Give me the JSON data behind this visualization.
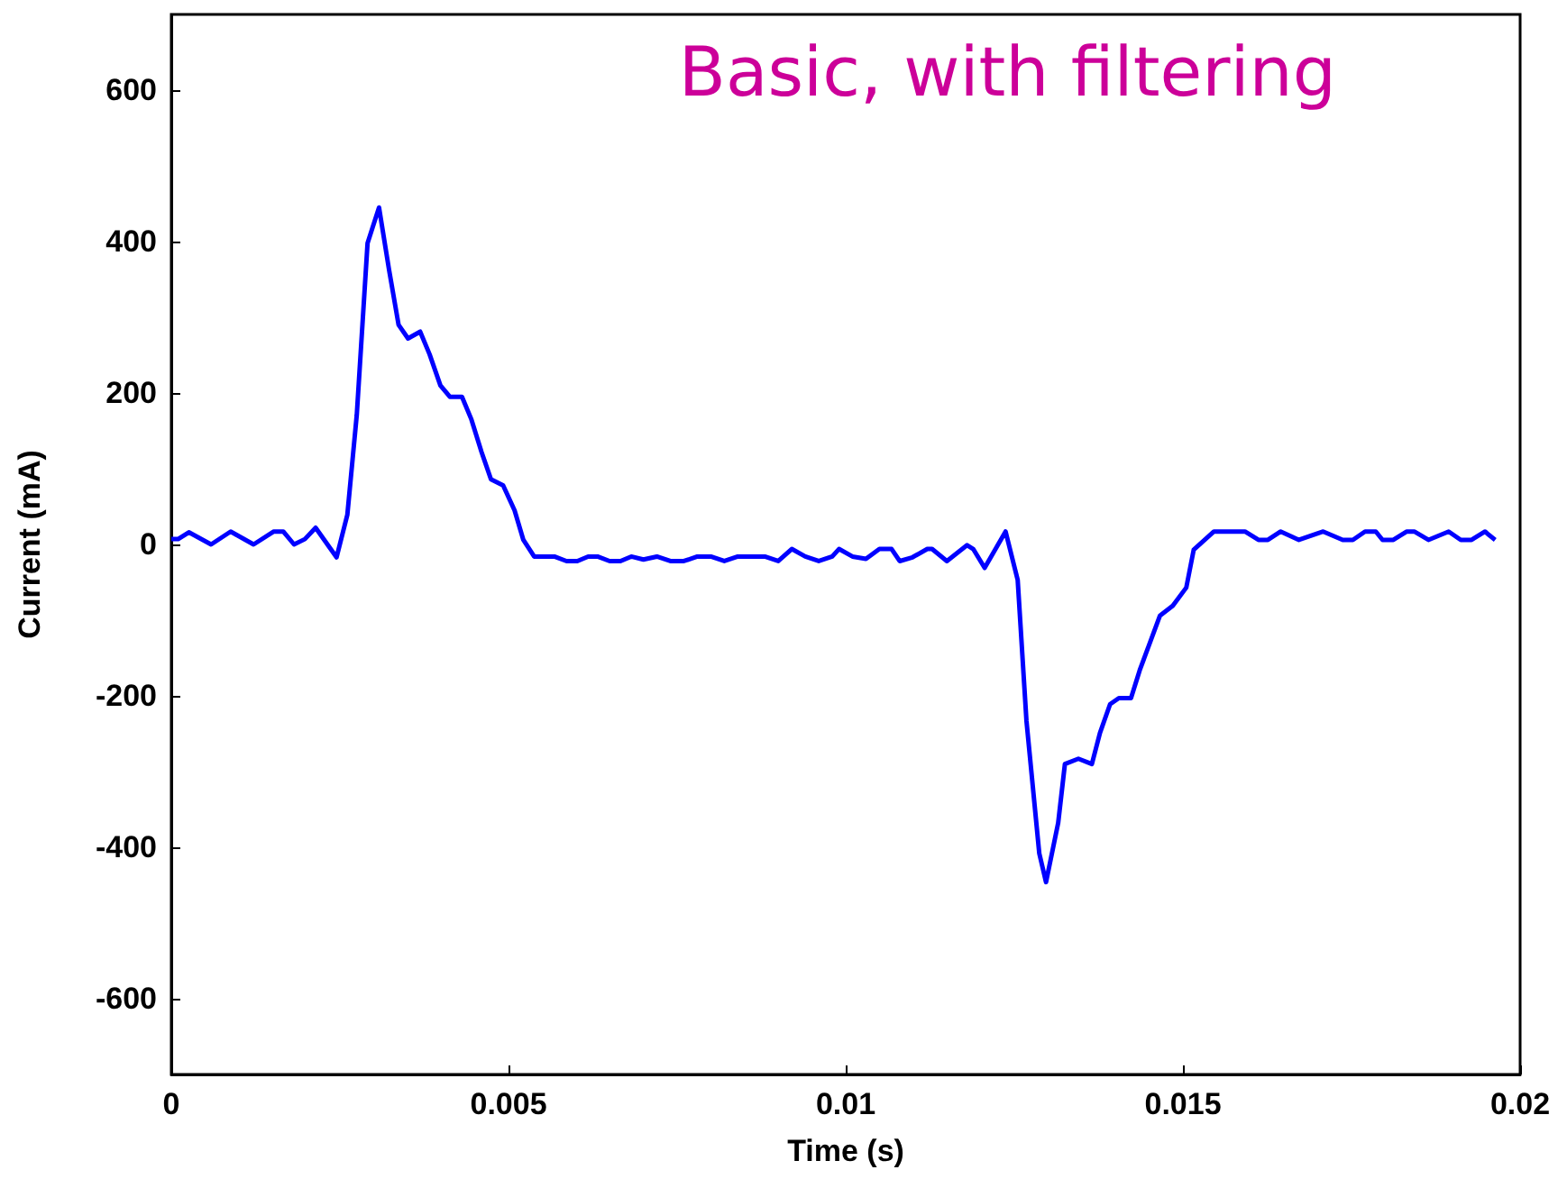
{
  "chart_data": {
    "type": "line",
    "title": "Basic, with filtering",
    "xlabel": "Time (s)",
    "ylabel": "Current (mA)",
    "x": [
      0,
      0.0001,
      0.00026,
      0.00059,
      0.00088,
      0.00122,
      0.00152,
      0.00166,
      0.00182,
      0.00198,
      0.00214,
      0.00245,
      0.00261,
      0.00275,
      0.00291,
      0.00308,
      0.00323,
      0.00337,
      0.00351,
      0.00369,
      0.00383,
      0.00399,
      0.00413,
      0.00431,
      0.00445,
      0.0046,
      0.00474,
      0.00492,
      0.00509,
      0.00522,
      0.00538,
      0.00568,
      0.00586,
      0.00602,
      0.00618,
      0.00632,
      0.0065,
      0.00666,
      0.00682,
      0.007,
      0.0072,
      0.0074,
      0.0076,
      0.0078,
      0.008,
      0.0082,
      0.0084,
      0.0086,
      0.0088,
      0.009,
      0.0092,
      0.0094,
      0.0096,
      0.0098,
      0.0099,
      0.0101,
      0.0103,
      0.0105,
      0.01068,
      0.0108,
      0.01099,
      0.01121,
      0.01128,
      0.0115,
      0.0118,
      0.01189,
      0.01206,
      0.01237,
      0.01255,
      0.01268,
      0.01287,
      0.01297,
      0.01315,
      0.01325,
      0.01345,
      0.01365,
      0.01377,
      0.01392,
      0.01405,
      0.01423,
      0.01436,
      0.01466,
      0.01485,
      0.01505,
      0.01516,
      0.01546,
      0.01592,
      0.01612,
      0.01626,
      0.01645,
      0.01672,
      0.01708,
      0.01737,
      0.01752,
      0.0177,
      0.01786,
      0.01796,
      0.01812,
      0.01832,
      0.01843,
      0.01864,
      0.01894,
      0.01912,
      0.01928,
      0.01948,
      0.01953,
      0.01963
    ],
    "series": [
      {
        "color": "#0000ff",
        "values": [
          7,
          7,
          16,
          0,
          17,
          0,
          17,
          17,
          0,
          7,
          22,
          -17,
          39,
          171,
          398,
          445,
          362,
          290,
          272,
          281,
          251,
          210,
          195,
          195,
          165,
          122,
          86,
          78,
          45,
          6,
          -16,
          -16,
          -22,
          -22,
          -16,
          -16,
          -22,
          -22,
          -16,
          -20,
          -16,
          -22,
          -22,
          -16,
          -16,
          -22,
          -16,
          -16,
          -16,
          -22,
          -6,
          -16,
          -22,
          -16,
          -6,
          -16,
          -19,
          -6,
          -6,
          -22,
          -17,
          -6,
          -6,
          -22,
          -1,
          -6,
          -31,
          17,
          -47,
          -233,
          -408,
          -446,
          -368,
          -290,
          -283,
          -290,
          -249,
          -211,
          -203,
          -203,
          -166,
          -94,
          -81,
          -57,
          -7,
          17,
          17,
          6,
          6,
          17,
          6,
          17,
          6,
          6,
          17,
          17,
          6,
          6,
          17,
          17,
          6,
          17,
          6,
          6,
          17,
          13,
          6
        ]
      }
    ],
    "xlim": [
      0,
      0.02
    ],
    "xticks": [
      0,
      0.005,
      0.01,
      0.015,
      0.02
    ],
    "ylim": [
      -700,
      700
    ],
    "yticks": [
      -600,
      -400,
      -200,
      0,
      200,
      400,
      600
    ],
    "grid": false,
    "marker": "none",
    "line_style": "solid"
  }
}
